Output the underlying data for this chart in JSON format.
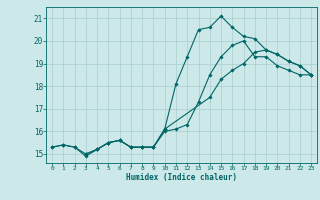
{
  "bg_color": "#cce8e8",
  "grid_color": "#aacece",
  "line_color": "#006666",
  "xlabel": "Humidex (Indice chaleur)",
  "xlim": [
    -0.5,
    23.5
  ],
  "ylim": [
    14.6,
    21.5
  ],
  "xticks": [
    0,
    1,
    2,
    3,
    4,
    5,
    6,
    7,
    8,
    9,
    10,
    11,
    12,
    13,
    14,
    15,
    16,
    17,
    18,
    19,
    20,
    21,
    22,
    23
  ],
  "yticks": [
    15,
    16,
    17,
    18,
    19,
    20,
    21
  ],
  "line1_x": [
    0,
    1,
    2,
    3,
    4,
    5,
    6,
    7,
    8,
    9,
    10,
    11,
    12,
    13,
    14,
    15,
    16,
    17,
    18,
    19,
    20,
    21,
    22,
    23
  ],
  "line1_y": [
    15.3,
    15.4,
    15.3,
    15.0,
    15.2,
    15.5,
    15.6,
    15.3,
    15.3,
    15.3,
    16.1,
    18.1,
    19.3,
    20.5,
    20.6,
    21.1,
    20.6,
    20.2,
    20.1,
    19.6,
    19.4,
    19.1,
    18.9,
    18.5
  ],
  "line2_x": [
    0,
    1,
    2,
    3,
    4,
    5,
    6,
    7,
    8,
    9,
    10,
    14,
    15,
    16,
    17,
    18,
    19,
    20,
    21,
    22,
    23
  ],
  "line2_y": [
    15.3,
    15.4,
    15.3,
    14.9,
    15.2,
    15.5,
    15.6,
    15.3,
    15.3,
    15.3,
    16.1,
    17.5,
    18.3,
    18.7,
    19.0,
    19.5,
    19.6,
    19.4,
    19.1,
    18.9,
    18.5
  ],
  "line3_x": [
    3,
    4,
    5,
    6,
    7,
    8,
    9,
    10,
    11,
    12,
    13,
    14,
    15,
    16,
    17,
    18,
    19,
    20,
    21,
    22,
    23
  ],
  "line3_y": [
    15.0,
    15.2,
    15.5,
    15.6,
    15.3,
    15.3,
    15.3,
    16.0,
    16.1,
    16.3,
    17.3,
    18.5,
    19.3,
    19.8,
    20.0,
    19.3,
    19.3,
    18.9,
    18.7,
    18.5,
    18.5
  ]
}
